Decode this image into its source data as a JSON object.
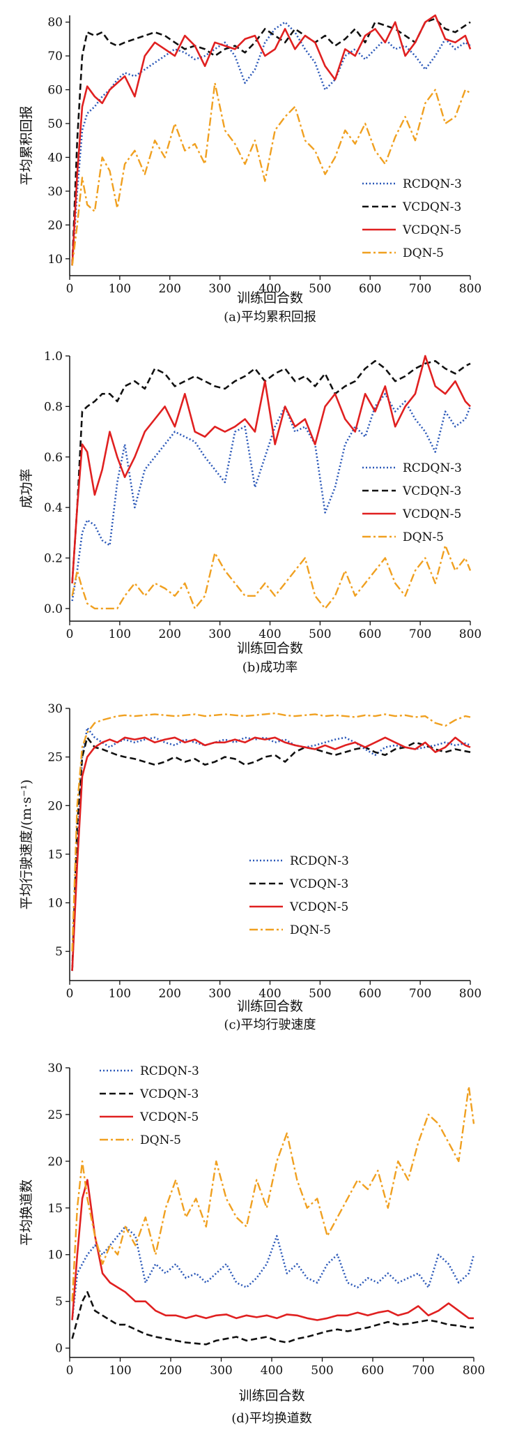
{
  "chart_data": [
    {
      "type": "line",
      "caption": "(a)平均累积回报",
      "xlabel": "训练回合数",
      "ylabel": "平均累积回报",
      "xlim": [
        0,
        800
      ],
      "ylim": [
        5,
        82
      ],
      "xticks": [
        "0",
        "100",
        "200",
        "300",
        "400",
        "500",
        "600",
        "700",
        "800"
      ],
      "yticks": [
        "10",
        "20",
        "30",
        "40",
        "50",
        "60",
        "70",
        "80"
      ],
      "legend_position": "lower-right",
      "x": [
        5,
        15,
        25,
        35,
        50,
        65,
        80,
        95,
        110,
        130,
        150,
        170,
        190,
        210,
        230,
        250,
        270,
        290,
        310,
        330,
        350,
        370,
        390,
        410,
        430,
        450,
        470,
        490,
        510,
        530,
        550,
        570,
        590,
        610,
        630,
        650,
        670,
        690,
        710,
        730,
        750,
        770,
        790,
        800
      ],
      "series": [
        {
          "name": "RCDQN-3",
          "values": [
            8,
            30,
            48,
            53,
            55,
            58,
            60,
            63,
            65,
            64,
            66,
            68,
            70,
            72,
            71,
            69,
            70,
            72,
            74,
            70,
            62,
            66,
            74,
            78,
            80,
            77,
            72,
            68,
            60,
            63,
            70,
            72,
            69,
            72,
            75,
            72,
            73,
            70,
            66,
            70,
            75,
            72,
            74,
            73
          ]
        },
        {
          "name": "VCDQN-3",
          "values": [
            8,
            45,
            70,
            77,
            76,
            77,
            74,
            73,
            74,
            75,
            76,
            77,
            76,
            74,
            72,
            73,
            72,
            70,
            72,
            73,
            71,
            74,
            78,
            76,
            74,
            78,
            76,
            74,
            76,
            73,
            75,
            78,
            74,
            80,
            79,
            78,
            76,
            74,
            80,
            81,
            78,
            77,
            79,
            80
          ]
        },
        {
          "name": "VCDQN-5",
          "values": [
            8,
            35,
            55,
            61,
            58,
            56,
            60,
            62,
            64,
            58,
            70,
            74,
            72,
            70,
            76,
            73,
            67,
            74,
            73,
            72,
            75,
            76,
            70,
            72,
            78,
            72,
            76,
            74,
            67,
            63,
            72,
            70,
            76,
            78,
            74,
            80,
            70,
            74,
            80,
            82,
            75,
            74,
            76,
            72
          ]
        },
        {
          "name": "DQN-5",
          "values": [
            8,
            20,
            34,
            26,
            24,
            40,
            36,
            25,
            38,
            42,
            35,
            45,
            40,
            50,
            42,
            44,
            38,
            62,
            48,
            44,
            38,
            45,
            33,
            48,
            52,
            55,
            45,
            42,
            35,
            40,
            48,
            44,
            50,
            42,
            38,
            46,
            52,
            45,
            56,
            60,
            50,
            52,
            60,
            59
          ]
        }
      ]
    },
    {
      "type": "line",
      "caption": "(b)成功率",
      "xlabel": "训练回合数",
      "ylabel": "成功率",
      "xlim": [
        0,
        800
      ],
      "ylim": [
        -0.05,
        1.0
      ],
      "xticks": [
        "0",
        "100",
        "200",
        "300",
        "400",
        "500",
        "600",
        "700",
        "800"
      ],
      "yticks": [
        "0.0",
        "0.2",
        "0.4",
        "0.6",
        "0.8",
        "1.0"
      ],
      "legend_position": "lower-right",
      "x": [
        5,
        15,
        25,
        35,
        50,
        65,
        80,
        95,
        110,
        130,
        150,
        170,
        190,
        210,
        230,
        250,
        270,
        290,
        310,
        330,
        350,
        370,
        390,
        410,
        430,
        450,
        470,
        490,
        510,
        530,
        550,
        570,
        590,
        610,
        630,
        650,
        670,
        690,
        710,
        730,
        750,
        770,
        790,
        800
      ],
      "series": [
        {
          "name": "RCDQN-3",
          "values": [
            0.03,
            0.15,
            0.3,
            0.35,
            0.33,
            0.27,
            0.25,
            0.5,
            0.65,
            0.4,
            0.55,
            0.6,
            0.65,
            0.7,
            0.68,
            0.66,
            0.6,
            0.55,
            0.5,
            0.7,
            0.72,
            0.48,
            0.6,
            0.72,
            0.8,
            0.7,
            0.72,
            0.65,
            0.38,
            0.48,
            0.65,
            0.72,
            0.68,
            0.8,
            0.85,
            0.78,
            0.82,
            0.75,
            0.7,
            0.62,
            0.78,
            0.72,
            0.75,
            0.8
          ]
        },
        {
          "name": "VCDQN-3",
          "values": [
            0.1,
            0.4,
            0.78,
            0.8,
            0.82,
            0.85,
            0.85,
            0.82,
            0.88,
            0.9,
            0.87,
            0.95,
            0.93,
            0.88,
            0.9,
            0.92,
            0.9,
            0.88,
            0.87,
            0.9,
            0.92,
            0.95,
            0.9,
            0.93,
            0.95,
            0.9,
            0.92,
            0.88,
            0.93,
            0.85,
            0.88,
            0.9,
            0.95,
            0.98,
            0.95,
            0.9,
            0.92,
            0.95,
            0.97,
            0.98,
            0.95,
            0.93,
            0.96,
            0.97
          ]
        },
        {
          "name": "VCDQN-5",
          "values": [
            0.1,
            0.4,
            0.65,
            0.62,
            0.45,
            0.55,
            0.7,
            0.6,
            0.52,
            0.6,
            0.7,
            0.75,
            0.8,
            0.72,
            0.85,
            0.7,
            0.68,
            0.72,
            0.7,
            0.72,
            0.75,
            0.7,
            0.9,
            0.65,
            0.8,
            0.72,
            0.75,
            0.65,
            0.8,
            0.85,
            0.75,
            0.7,
            0.85,
            0.78,
            0.88,
            0.72,
            0.8,
            0.85,
            1.0,
            0.88,
            0.85,
            0.9,
            0.82,
            0.8
          ]
        },
        {
          "name": "DQN-5",
          "values": [
            0.05,
            0.15,
            0.08,
            0.02,
            0.0,
            0.0,
            0.0,
            0.0,
            0.05,
            0.1,
            0.05,
            0.1,
            0.08,
            0.05,
            0.1,
            0.0,
            0.05,
            0.22,
            0.15,
            0.1,
            0.05,
            0.05,
            0.1,
            0.05,
            0.1,
            0.15,
            0.2,
            0.05,
            0.0,
            0.05,
            0.15,
            0.05,
            0.1,
            0.15,
            0.2,
            0.1,
            0.05,
            0.15,
            0.2,
            0.1,
            0.25,
            0.15,
            0.2,
            0.15
          ]
        }
      ]
    },
    {
      "type": "line",
      "caption": "(c)平均行驶速度",
      "xlabel": "训练回合数",
      "ylabel": "平均行驶速度/(m·s⁻¹)",
      "xlim": [
        0,
        800
      ],
      "ylim": [
        2,
        30
      ],
      "xticks": [
        "0",
        "100",
        "200",
        "300",
        "400",
        "500",
        "600",
        "700",
        "800"
      ],
      "yticks": [
        "5",
        "10",
        "15",
        "20",
        "25",
        "30"
      ],
      "legend_position": "center",
      "x": [
        5,
        15,
        25,
        35,
        50,
        65,
        80,
        95,
        110,
        130,
        150,
        170,
        190,
        210,
        230,
        250,
        270,
        290,
        310,
        330,
        350,
        370,
        390,
        410,
        430,
        450,
        470,
        490,
        510,
        530,
        550,
        570,
        590,
        610,
        630,
        650,
        670,
        690,
        710,
        730,
        750,
        770,
        790,
        800
      ],
      "series": [
        {
          "name": "RCDQN-3",
          "values": [
            3,
            15,
            25,
            28,
            27,
            26.5,
            26,
            26.5,
            26.8,
            26.5,
            26.8,
            27,
            26.5,
            26.2,
            26.8,
            26.5,
            26.2,
            26.5,
            26.8,
            26.5,
            27,
            26.8,
            27,
            26.5,
            26.8,
            26.2,
            26,
            26.2,
            26.5,
            26.8,
            27,
            26.5,
            25.8,
            25.2,
            26,
            26.2,
            26,
            25.8,
            26,
            26.2,
            26.5,
            26.2,
            26.4,
            26.2
          ]
        },
        {
          "name": "VCDQN-3",
          "values": [
            3,
            18,
            25,
            27,
            26,
            25.8,
            25.5,
            25.2,
            25,
            24.8,
            24.5,
            24.2,
            24.5,
            25,
            24.5,
            24.8,
            24.2,
            24.5,
            25,
            24.8,
            24.2,
            24.5,
            25,
            25.2,
            24.5,
            25.5,
            26,
            25.8,
            25.5,
            25.2,
            25.5,
            25.8,
            26,
            25.5,
            25.2,
            25.8,
            26,
            26.5,
            26.2,
            25.8,
            25.5,
            25.8,
            25.6,
            25.5
          ]
        },
        {
          "name": "VCDQN-5",
          "values": [
            3,
            14,
            23,
            25,
            26,
            26.5,
            26.8,
            26.5,
            27,
            26.8,
            27,
            26.5,
            26.8,
            27,
            26.5,
            26.8,
            26.2,
            26.5,
            26.5,
            26.8,
            26.5,
            27,
            26.8,
            27,
            26.5,
            26.2,
            26,
            25.8,
            26.2,
            25.8,
            26.2,
            26.5,
            26,
            26.5,
            27,
            26.5,
            26,
            25.8,
            26.5,
            25.5,
            26,
            27,
            26.2,
            26
          ]
        },
        {
          "name": "DQN-5",
          "values": [
            5,
            20,
            26,
            27.5,
            28.5,
            28.8,
            29,
            29.2,
            29.3,
            29.2,
            29.3,
            29.4,
            29.3,
            29.2,
            29.3,
            29.4,
            29.2,
            29.3,
            29.4,
            29.3,
            29.2,
            29.3,
            29.4,
            29.5,
            29.3,
            29.2,
            29.3,
            29.4,
            29.2,
            29.3,
            29.2,
            29.1,
            29.3,
            29.2,
            29.4,
            29.2,
            29.3,
            29.1,
            29.2,
            28.5,
            28.2,
            28.8,
            29.2,
            29.1
          ]
        }
      ]
    },
    {
      "type": "line",
      "caption": "(d)平均换道数",
      "xlabel": "训练回合数",
      "ylabel": "平均换道数",
      "xlim": [
        0,
        800
      ],
      "ylim": [
        -1,
        30
      ],
      "xticks": [
        "0",
        "100",
        "200",
        "300",
        "400",
        "500",
        "600",
        "700",
        "800"
      ],
      "yticks": [
        "0",
        "5",
        "10",
        "15",
        "20",
        "25",
        "30"
      ],
      "legend_position": "top-left",
      "x": [
        5,
        15,
        25,
        35,
        50,
        65,
        80,
        95,
        110,
        130,
        150,
        170,
        190,
        210,
        230,
        250,
        270,
        290,
        310,
        330,
        350,
        370,
        390,
        410,
        430,
        450,
        470,
        490,
        510,
        530,
        550,
        570,
        590,
        610,
        630,
        650,
        670,
        690,
        710,
        730,
        750,
        770,
        790,
        800
      ],
      "series": [
        {
          "name": "RCDQN-3",
          "values": [
            3,
            8,
            9,
            10,
            11,
            10,
            11,
            12,
            13,
            12,
            7,
            9,
            8,
            9,
            7.5,
            8,
            7,
            8,
            9,
            7,
            6.5,
            7.5,
            9,
            12,
            8,
            9,
            7.5,
            7,
            9,
            10,
            7,
            6.5,
            7.5,
            7,
            8,
            7,
            7.5,
            8,
            6.5,
            10,
            9,
            7,
            8,
            10
          ]
        },
        {
          "name": "VCDQN-3",
          "values": [
            1,
            3,
            5,
            6,
            4,
            3.5,
            3,
            2.5,
            2.5,
            2,
            1.5,
            1.2,
            1,
            0.8,
            0.6,
            0.5,
            0.4,
            0.8,
            1,
            1.2,
            0.8,
            1,
            1.2,
            0.8,
            0.6,
            1,
            1.2,
            1.5,
            1.8,
            2,
            1.8,
            2,
            2.2,
            2.5,
            2.8,
            2.5,
            2.6,
            2.8,
            3,
            2.8,
            2.5,
            2.4,
            2.2,
            2.2
          ]
        },
        {
          "name": "VCDQN-5",
          "values": [
            3,
            10,
            16,
            18,
            12,
            8,
            7,
            6.5,
            6,
            5,
            5,
            4,
            3.5,
            3.5,
            3.2,
            3.5,
            3.2,
            3.5,
            3.6,
            3.2,
            3.5,
            3.3,
            3.5,
            3.2,
            3.6,
            3.5,
            3.2,
            3,
            3.2,
            3.5,
            3.5,
            3.8,
            3.5,
            3.8,
            4,
            3.5,
            3.8,
            4.5,
            3.5,
            4,
            4.8,
            4,
            3.2,
            3.2
          ]
        },
        {
          "name": "DQN-5",
          "values": [
            5,
            15,
            20,
            16,
            12,
            9,
            11,
            10,
            13,
            11,
            14,
            10,
            15,
            18,
            14,
            16,
            13,
            20,
            16,
            14,
            13,
            18,
            15,
            20,
            23,
            18,
            15,
            16,
            12,
            14,
            16,
            18,
            17,
            19,
            15,
            20,
            18,
            22,
            25,
            24,
            22,
            20,
            28,
            24
          ]
        }
      ]
    }
  ]
}
